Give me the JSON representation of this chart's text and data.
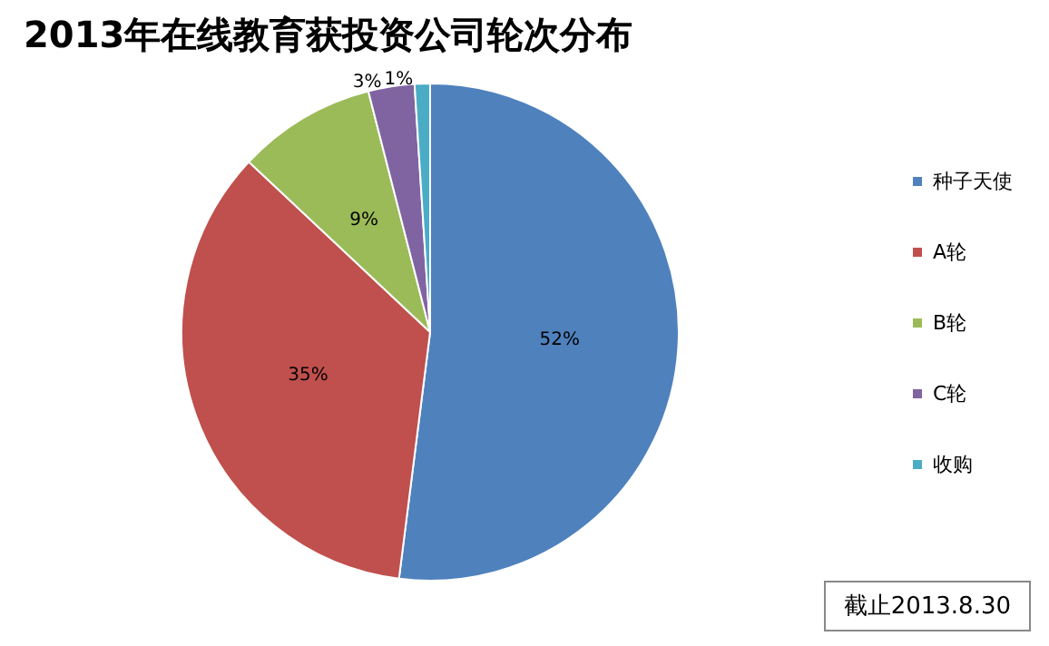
{
  "chart_data": {
    "type": "pie",
    "title": "2013年在线教育获投资公司轮次分布",
    "categories": [
      "种子天使",
      "A轮",
      "B轮",
      "C轮",
      "收购"
    ],
    "values": [
      52,
      35,
      9,
      3,
      1
    ],
    "value_labels": [
      "52%",
      "35%",
      "9%",
      "3%",
      "1%"
    ],
    "colors": [
      "#4f81bd",
      "#c0504d",
      "#9bbb59",
      "#8064a2",
      "#4bacc6"
    ],
    "legend": "right",
    "annotations": [
      "截止2013.8.30"
    ]
  }
}
